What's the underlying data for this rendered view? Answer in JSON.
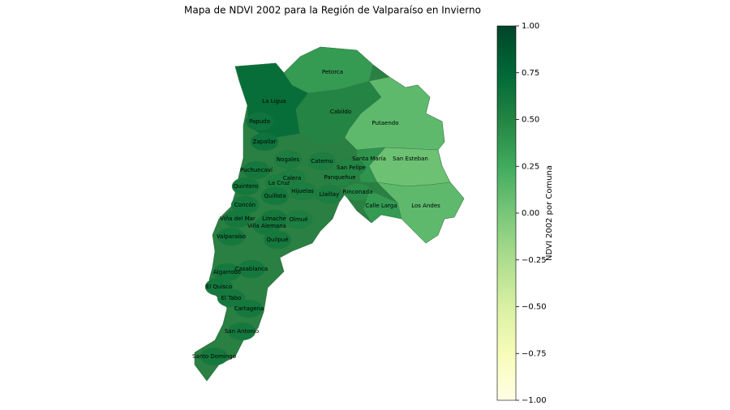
{
  "chart_data": {
    "type": "choropleth",
    "title": "Mapa de NDVI 2002 para la Región de Valparaíso en Invierno",
    "colorbar_label": "NDVI 2002 por Comuna",
    "colormap": "YlGn",
    "clim": [
      -1,
      1
    ],
    "cticks": [
      {
        "value": 1,
        "label": "1.00"
      },
      {
        "value": 0.75,
        "label": "0.75"
      },
      {
        "value": 0.5,
        "label": "0.50"
      },
      {
        "value": 0.25,
        "label": "0.25"
      },
      {
        "value": 0,
        "label": "0.00"
      },
      {
        "value": -0.25,
        "label": "−0.25"
      },
      {
        "value": -0.5,
        "label": "−0.50"
      },
      {
        "value": -0.75,
        "label": "−0.75"
      },
      {
        "value": -1,
        "label": "−1.00"
      }
    ],
    "comunas": [
      "Petorca",
      "La Ligua",
      "Cabildo",
      "Putaendo",
      "Papudo",
      "Zapallar",
      "Santa María",
      "San Esteban",
      "Nogales",
      "Catemu",
      "San Felipe",
      "Puchuncaví",
      "Panquehue",
      "Calera",
      "Quintero",
      "La Cruz",
      "Hijuelas",
      "Rinconada",
      "Quillota",
      "Llaillay",
      "Calle Larga",
      "Los Andes",
      "Concón",
      "Viña del Mar",
      "Limache",
      "Olmué",
      "Villa Alemana",
      "Valparaíso",
      "Quilpué",
      "Casablanca",
      "Algarrobo",
      "El Quisco",
      "El Tabo",
      "Cartagena",
      "San Antonio",
      "Santo Domingo"
    ],
    "values": [
      0.35,
      0.7,
      0.5,
      0.12,
      0.65,
      0.65,
      0.4,
      0.05,
      0.55,
      0.55,
      0.5,
      0.6,
      0.5,
      0.55,
      0.6,
      0.55,
      0.55,
      0.45,
      0.6,
      0.55,
      0.35,
      0.12,
      0.6,
      0.6,
      0.6,
      0.55,
      0.6,
      0.6,
      0.6,
      0.6,
      0.6,
      0.6,
      0.6,
      0.6,
      0.6,
      0.6
    ]
  }
}
